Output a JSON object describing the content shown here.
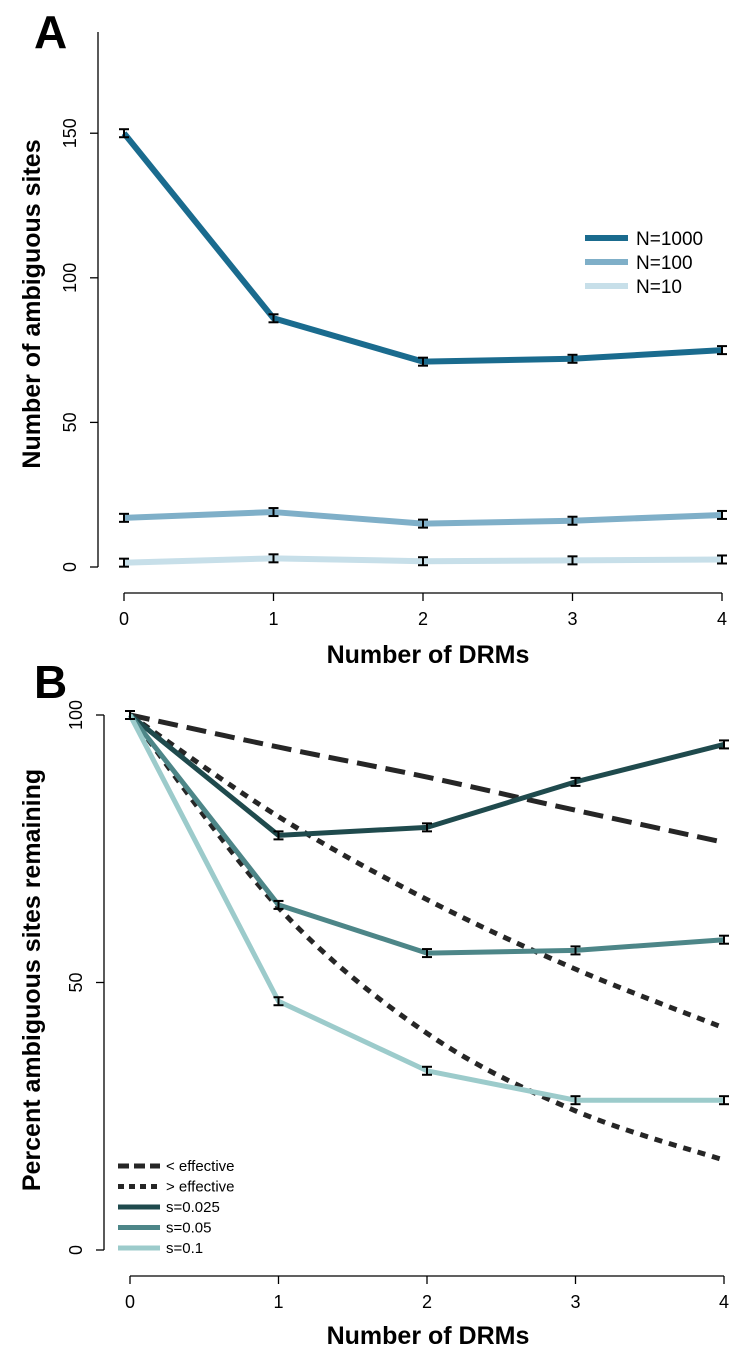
{
  "chart_data": [
    {
      "panel": "A",
      "type": "line",
      "xlabel": "Number of DRMs",
      "ylabel": "Number of ambiguous sites",
      "x": [
        0,
        1,
        2,
        3,
        4
      ],
      "x_ticks": [
        "0",
        "1",
        "2",
        "3",
        "4"
      ],
      "y_ticks": [
        "0",
        "50",
        "100",
        "150"
      ],
      "xlim": [
        0,
        4
      ],
      "ylim": [
        0,
        185
      ],
      "grid": false,
      "legend_placement": "right",
      "series": [
        {
          "name": "N=1000",
          "color": "#1a6b8e",
          "values": [
            150,
            86,
            71,
            72,
            75
          ]
        },
        {
          "name": "N=100",
          "color": "#7fafc8",
          "values": [
            17,
            19,
            15,
            16,
            18
          ]
        },
        {
          "name": "N=10",
          "color": "#c7dfe9",
          "values": [
            1.5,
            3,
            2,
            2.3,
            2.6
          ]
        }
      ],
      "error_bars": true
    },
    {
      "panel": "B",
      "type": "line",
      "xlabel": "Number of DRMs",
      "ylabel": "Percent ambiguous sites remaining",
      "x": [
        0,
        1,
        2,
        3,
        4
      ],
      "x_ticks": [
        "0",
        "1",
        "2",
        "3",
        "4"
      ],
      "y_ticks": [
        "0",
        "50",
        "100"
      ],
      "xlim": [
        0,
        4
      ],
      "ylim": [
        0,
        100
      ],
      "grid": false,
      "legend_placement": "bottom-left",
      "series": [
        {
          "name": "< effective",
          "style": "dashed",
          "color": "#262626",
          "values": [
            100,
            94,
            88.4,
            82.2,
            76.2
          ]
        },
        {
          "name": "> effective",
          "style": "dotted",
          "color": "#262626",
          "curves": [
            [
              100,
              81,
              65.5,
              52.5,
              41.5
            ],
            [
              100,
              64,
              40.5,
              26,
              16.8
            ]
          ]
        },
        {
          "name": "s=0.025",
          "style": "solid",
          "color": "#1f4a4d",
          "values": [
            100,
            77.5,
            79,
            87.5,
            94.5
          ]
        },
        {
          "name": "s=0.05",
          "style": "solid",
          "color": "#4d8688",
          "values": [
            100,
            64.5,
            55.5,
            56,
            58
          ]
        },
        {
          "name": "s=0.1",
          "style": "solid",
          "color": "#9ccbcb",
          "values": [
            100,
            46.5,
            33.5,
            28,
            28
          ]
        }
      ],
      "error_bars": true
    }
  ]
}
